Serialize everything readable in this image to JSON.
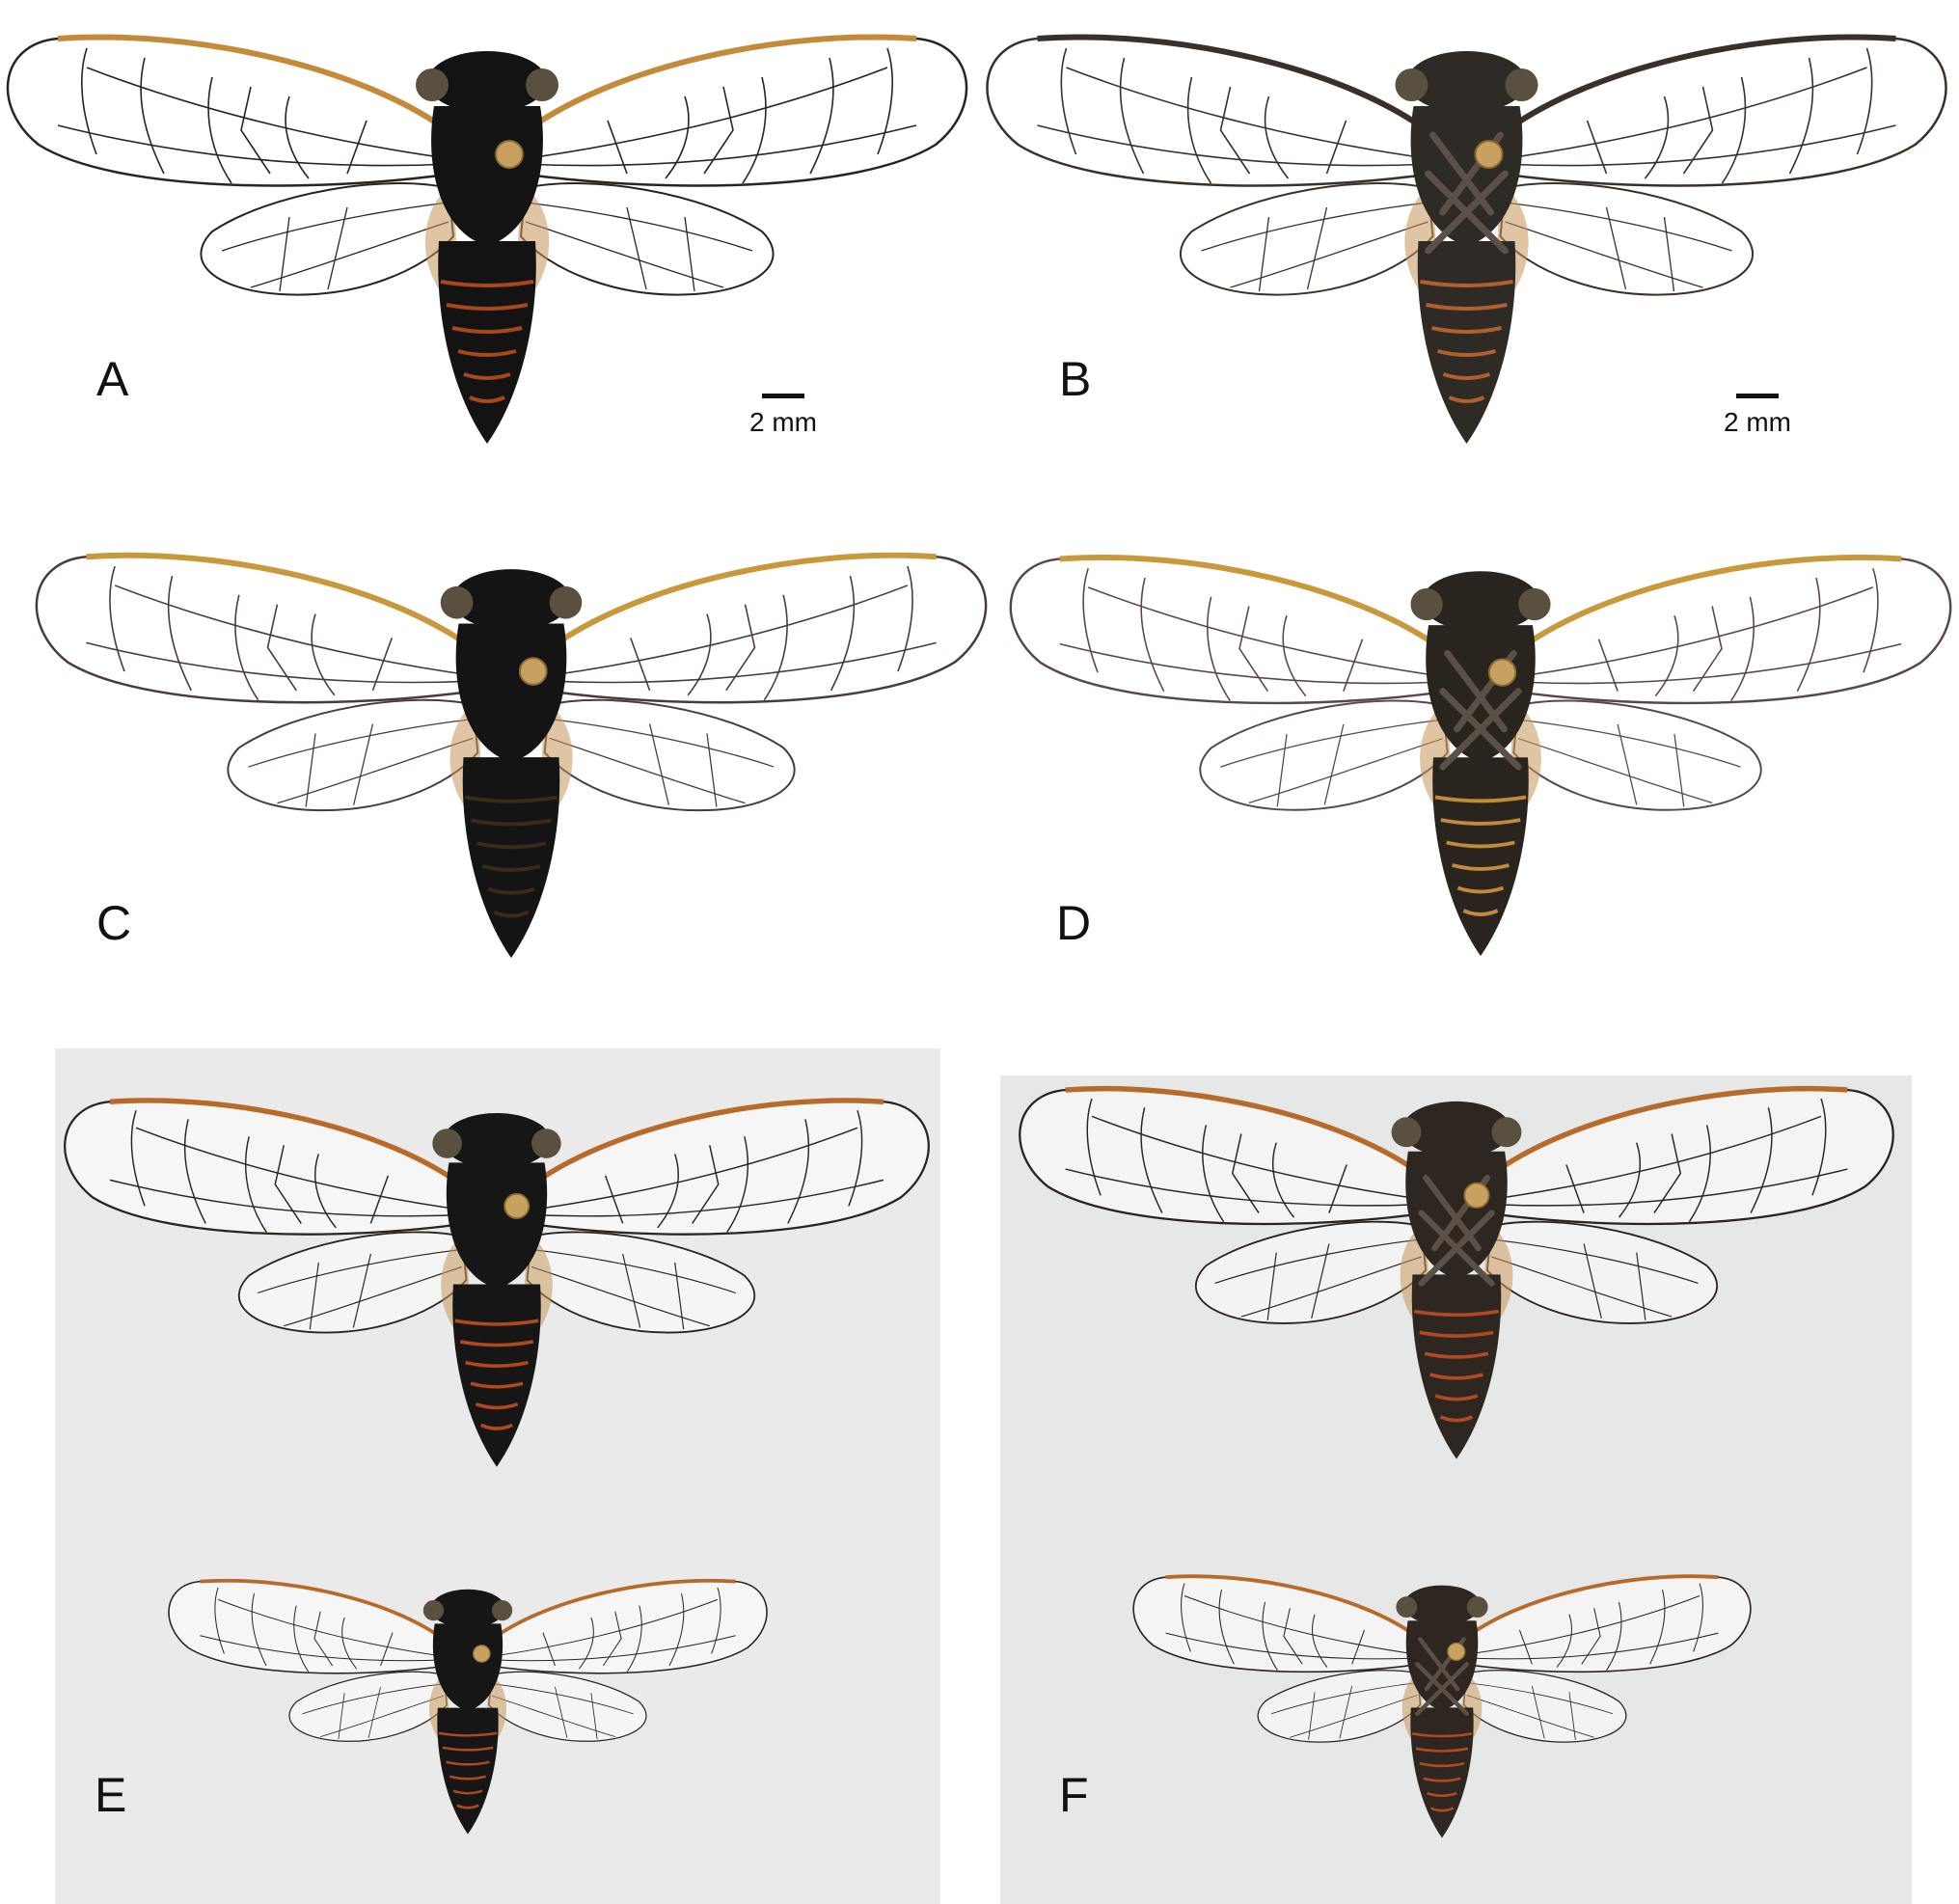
{
  "panels": [
    {
      "id": "A",
      "label": "A",
      "view": "dorsal",
      "background": "#ffffff",
      "body_color": "#131313",
      "band_color": "#a8461c",
      "wing_vein_color": "#2a2420",
      "costa_color": "#c48a3a",
      "scale": "2 mm"
    },
    {
      "id": "B",
      "label": "B",
      "view": "ventral",
      "background": "#ffffff",
      "body_color": "#2e2a26",
      "band_color": "#b0602e",
      "wing_vein_color": "#3a302a",
      "costa_color": "#3a302a",
      "scale": "2 mm"
    },
    {
      "id": "C",
      "label": "C",
      "view": "dorsal",
      "background": "#ffffff",
      "body_color": "#141414",
      "band_color": "#3a2a1a",
      "wing_vein_color": "#4a3a3a",
      "costa_color": "#c8983a",
      "scale": ""
    },
    {
      "id": "D",
      "label": "D",
      "view": "ventral",
      "background": "#ffffff",
      "body_color": "#2a241e",
      "band_color": "#c08a3a",
      "wing_vein_color": "#5a4646",
      "costa_color": "#c8983a",
      "scale": ""
    },
    {
      "id": "E",
      "label": "E",
      "view": "dorsal",
      "background": "#e9eae9",
      "body_color": "#161616",
      "band_color": "#b0481e",
      "wing_vein_color": "#2a2420",
      "costa_color": "#b86a2a",
      "scale": ""
    },
    {
      "id": "F",
      "label": "F",
      "view": "ventral",
      "background": "#e6e7e7",
      "body_color": "#2e2620",
      "band_color": "#b04a22",
      "wing_vein_color": "#2a2420",
      "costa_color": "#b86a2a",
      "scale": ""
    }
  ]
}
